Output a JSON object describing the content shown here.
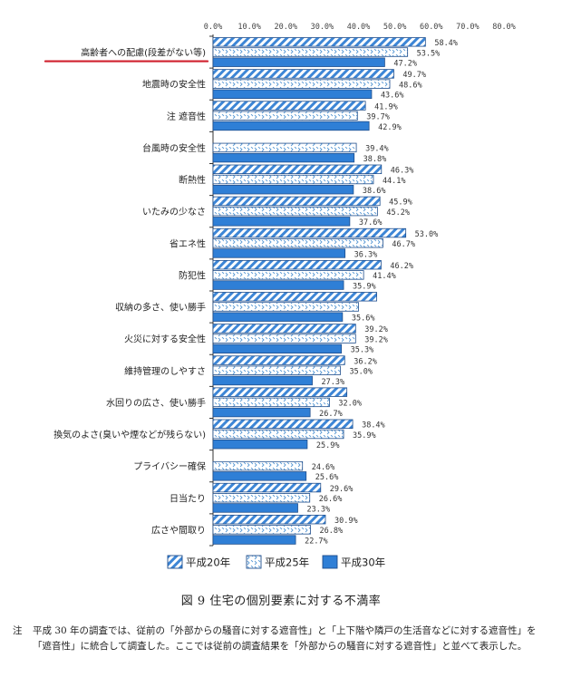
{
  "chart_data": {
    "type": "bar",
    "orientation": "horizontal",
    "xlim": [
      0,
      80
    ],
    "ticks": [
      "0.0%",
      "10.0%",
      "20.0%",
      "30.0%",
      "40.0%",
      "50.0%",
      "60.0%",
      "70.0%",
      "80.0%"
    ],
    "tick_values": [
      0,
      10,
      20,
      30,
      40,
      50,
      60,
      70,
      80
    ],
    "categories": [
      "高齢者への配慮(段差がない等)",
      "地震時の安全性",
      "注 遮音性",
      "台風時の安全性",
      "断熱性",
      "いたみの少なさ",
      "省エネ性",
      "防犯性",
      "収納の多さ、使い勝手",
      "火災に対する安全性",
      "維持管理のしやすさ",
      "水回りの広さ、使い勝手",
      "換気のよさ(臭いや煙などが残らない)",
      "プライバシー確保",
      "日当たり",
      "広さや間取り"
    ],
    "series": [
      {
        "name": "平成20年",
        "values": [
          58.4,
          49.7,
          41.9,
          null,
          46.3,
          45.9,
          53.0,
          46.2,
          45.0,
          39.2,
          36.2,
          36.8,
          38.4,
          null,
          29.6,
          30.9
        ],
        "labels": [
          "58.4%",
          "49.7%",
          "41.9%",
          "",
          "46.3%",
          "45.9%",
          "53.0%",
          "46.2%",
          "",
          "39.2%",
          "36.2%",
          "",
          "38.4%",
          "",
          "29.6%",
          "30.9%"
        ]
      },
      {
        "name": "平成25年",
        "values": [
          53.5,
          48.6,
          39.7,
          39.4,
          44.1,
          45.2,
          46.7,
          41.4,
          40.0,
          39.2,
          35.0,
          32.0,
          35.9,
          24.6,
          26.6,
          26.8
        ],
        "labels": [
          "53.5%",
          "48.6%",
          "39.7%",
          "39.4%",
          "44.1%",
          "45.2%",
          "46.7%",
          "41.4%",
          "",
          "39.2%",
          "35.0%",
          "32.0%",
          "35.9%",
          "24.6%",
          "26.6%",
          "26.8%"
        ]
      },
      {
        "name": "平成30年",
        "values": [
          47.2,
          43.6,
          42.9,
          38.8,
          38.6,
          37.6,
          36.3,
          35.9,
          35.6,
          35.3,
          27.3,
          26.7,
          25.9,
          25.6,
          23.3,
          22.7
        ],
        "labels": [
          "47.2%",
          "43.6%",
          "42.9%",
          "38.8%",
          "38.6%",
          "37.6%",
          "36.3%",
          "35.9%",
          "35.6%",
          "35.3%",
          "27.3%",
          "26.7%",
          "25.9%",
          "25.6%",
          "23.3%",
          "22.7%"
        ]
      }
    ],
    "colors": {
      "h20_stripe": "#3d86d6",
      "h25_dots": "#5b9bd5",
      "h30_fill": "#2f7fd6",
      "bar_outline": "#1f4e8c",
      "highlight_underline": "#d0202e"
    },
    "legend": [
      "平成20年",
      "平成25年",
      "平成30年"
    ],
    "legend_position": "bottom",
    "highlighted_category": "高齢者への配慮(段差がない等)"
  },
  "caption": "図 9  住宅の個別要素に対する不満率",
  "note": {
    "mark": "注",
    "text": "平成 30 年の調査では、従前の「外部からの騒音に対する遮音性」と「上下階や隣戸の生活音などに対する遮音性」を「遮音性」に統合して調査した。ここでは従前の調査結果を「外部からの騒音に対する遮音性」と並べて表示した。"
  }
}
